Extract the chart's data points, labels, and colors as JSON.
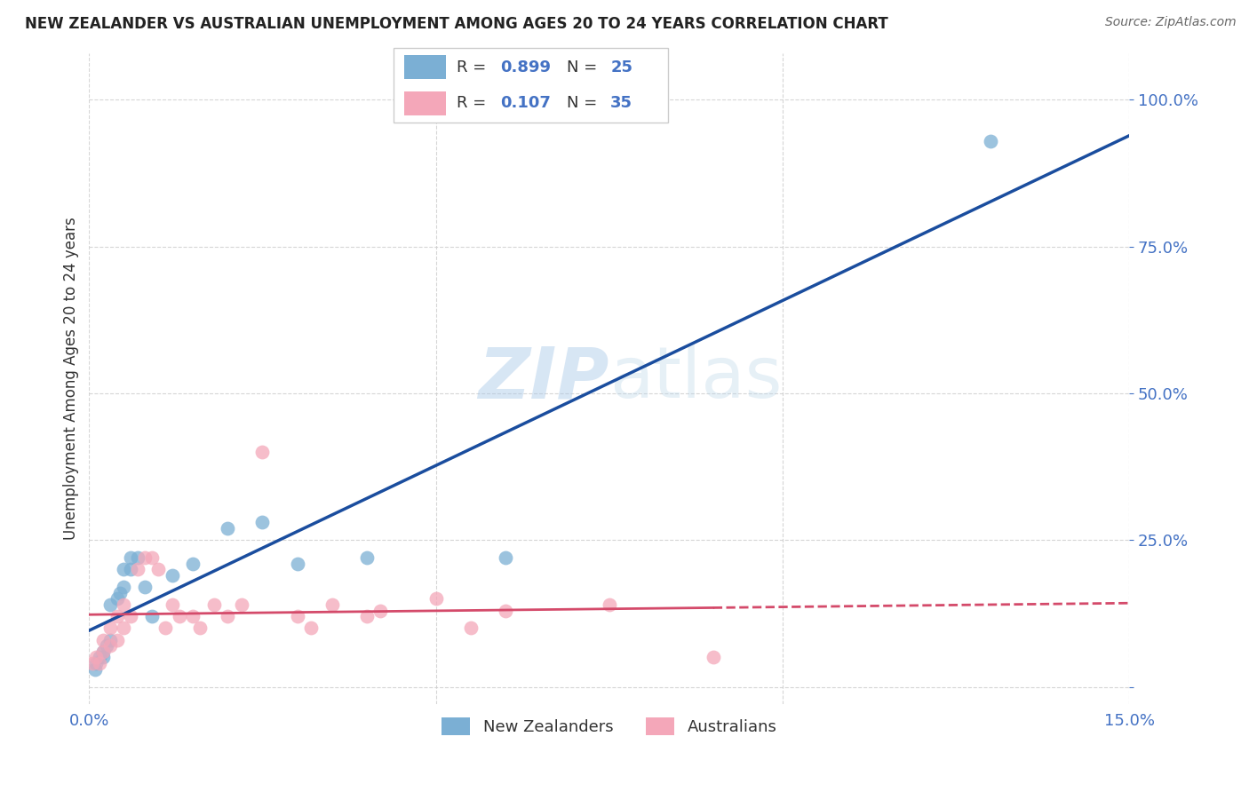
{
  "title": "NEW ZEALANDER VS AUSTRALIAN UNEMPLOYMENT AMONG AGES 20 TO 24 YEARS CORRELATION CHART",
  "source": "Source: ZipAtlas.com",
  "ylabel": "Unemployment Among Ages 20 to 24 years",
  "xlim": [
    0.0,
    0.15
  ],
  "ylim": [
    -0.03,
    1.08
  ],
  "nz_R": 0.899,
  "nz_N": 25,
  "au_R": 0.107,
  "au_N": 35,
  "nz_color": "#7bafd4",
  "nz_line_color": "#1a4d9e",
  "au_color": "#f4a7b9",
  "au_line_color": "#d44a6a",
  "nz_scatter_x": [
    0.0008,
    0.001,
    0.0015,
    0.002,
    0.002,
    0.0025,
    0.003,
    0.003,
    0.004,
    0.0045,
    0.005,
    0.005,
    0.006,
    0.006,
    0.007,
    0.008,
    0.009,
    0.012,
    0.015,
    0.02,
    0.025,
    0.03,
    0.04,
    0.06,
    0.13
  ],
  "nz_scatter_y": [
    0.03,
    0.04,
    0.05,
    0.05,
    0.06,
    0.07,
    0.08,
    0.14,
    0.15,
    0.16,
    0.17,
    0.2,
    0.2,
    0.22,
    0.22,
    0.17,
    0.12,
    0.19,
    0.21,
    0.27,
    0.28,
    0.21,
    0.22,
    0.22,
    0.93
  ],
  "au_scatter_x": [
    0.0005,
    0.001,
    0.0015,
    0.002,
    0.002,
    0.003,
    0.003,
    0.004,
    0.004,
    0.005,
    0.005,
    0.006,
    0.007,
    0.008,
    0.009,
    0.01,
    0.011,
    0.012,
    0.013,
    0.015,
    0.016,
    0.018,
    0.02,
    0.022,
    0.025,
    0.03,
    0.032,
    0.035,
    0.04,
    0.042,
    0.05,
    0.055,
    0.06,
    0.075,
    0.09
  ],
  "au_scatter_y": [
    0.04,
    0.05,
    0.04,
    0.06,
    0.08,
    0.07,
    0.1,
    0.08,
    0.12,
    0.1,
    0.14,
    0.12,
    0.2,
    0.22,
    0.22,
    0.2,
    0.1,
    0.14,
    0.12,
    0.12,
    0.1,
    0.14,
    0.12,
    0.14,
    0.4,
    0.12,
    0.1,
    0.14,
    0.12,
    0.13,
    0.15,
    0.1,
    0.13,
    0.14,
    0.05
  ],
  "background_color": "#ffffff",
  "grid_color": "#cccccc"
}
